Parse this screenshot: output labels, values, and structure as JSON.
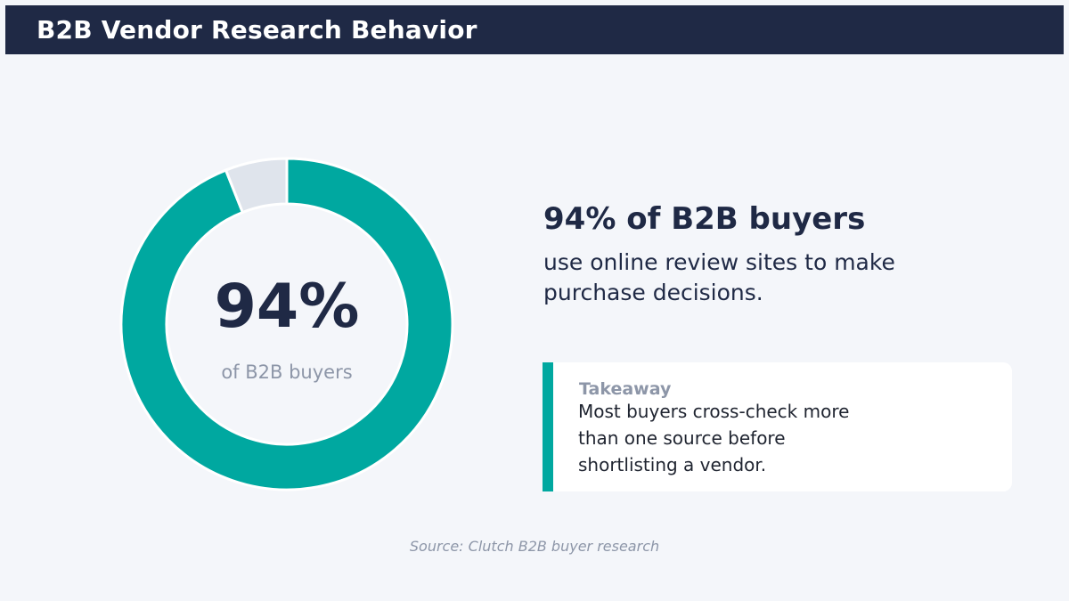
{
  "header": {
    "title": "B2B Vendor Research Behavior"
  },
  "chart_data": {
    "type": "pie",
    "labels": [
      "of B2B buyers",
      ""
    ],
    "values": [
      94,
      6
    ],
    "colors": [
      "#00a8a0",
      "#dfe4ec"
    ],
    "center_value": "94%",
    "center_label": "of B2B buyers"
  },
  "stat": {
    "headline": "94% of B2B buyers",
    "description": "use online review sites to make purchase decisions."
  },
  "takeaway": {
    "label": "Takeaway",
    "text": "Most buyers cross-check more than one source before shortlisting a vendor."
  },
  "footer": {
    "source": "Source: Clutch B2B buyer research"
  },
  "colors": {
    "header_bg": "#1f2945",
    "accent": "#00a8a0",
    "track": "#dfe4ec",
    "page_bg": "#f4f6fa"
  }
}
